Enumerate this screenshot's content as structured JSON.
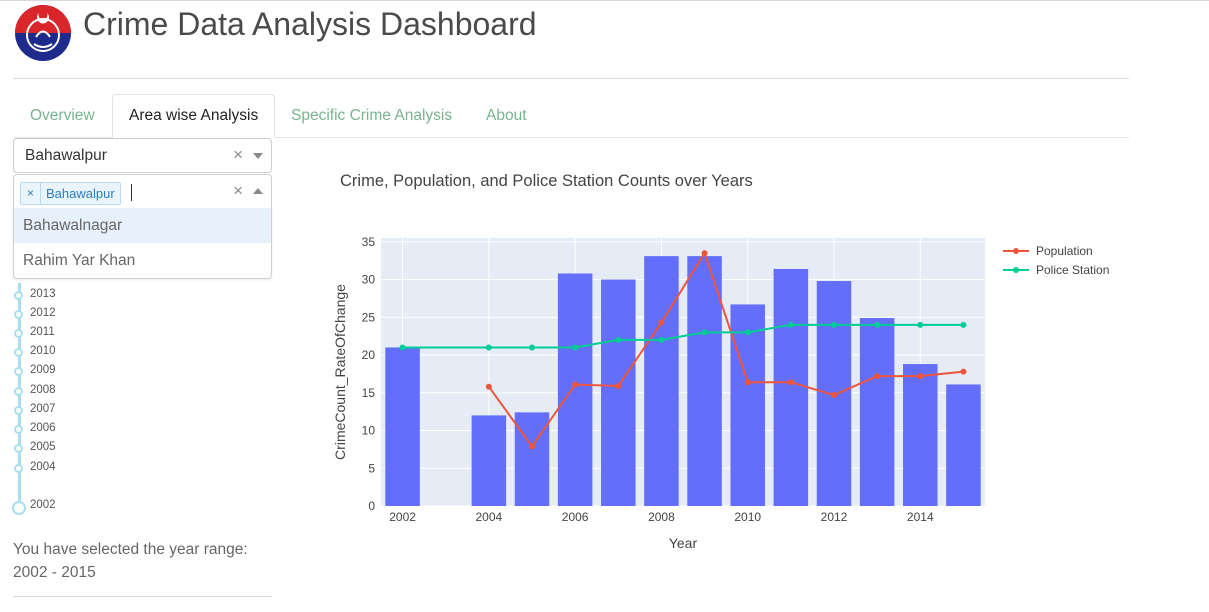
{
  "header": {
    "title": "Crime Data Analysis Dashboard",
    "logo_icon": "police-emblem"
  },
  "tabs": [
    {
      "label": "Overview",
      "active": false
    },
    {
      "label": "Area wise Analysis",
      "active": true
    },
    {
      "label": "Specific Crime Analysis",
      "active": false
    },
    {
      "label": "About",
      "active": false
    }
  ],
  "filters": {
    "district_dropdown": {
      "value": "Bahawalpur"
    },
    "multi_dropdown": {
      "selected": [
        "Bahawalpur"
      ],
      "options": [
        "Bahawalnagar",
        "Rahim Yar Khan"
      ]
    }
  },
  "slider": {
    "marks": [
      "2013",
      "2012",
      "2011",
      "2010",
      "2009",
      "2008",
      "2007",
      "2006",
      "2005",
      "2004",
      "2002"
    ],
    "selected_text": "You have selected the year range:",
    "selected_range": "2002 - 2015"
  },
  "colors": {
    "bar": "#636efa",
    "population": "#ef553b",
    "police_station": "#00cc96",
    "plot_bg": "#e5ecf6",
    "tab_inactive": "#78b48e"
  },
  "chart_data": {
    "type": "bar",
    "title": "Crime, Population, and Police Station Counts over Years",
    "xlabel": "Year",
    "ylabel": "CrimeCount_RateOfChange",
    "xlim": [
      2001.5,
      2015.5
    ],
    "ylim": [
      0,
      35.5
    ],
    "xticks": [
      2002,
      2004,
      2006,
      2008,
      2010,
      2012,
      2014
    ],
    "yticks": [
      0,
      5,
      10,
      15,
      20,
      25,
      30,
      35
    ],
    "grid": true,
    "legend_position": "top-right",
    "bars": {
      "x": [
        2002,
        2004,
        2005,
        2006,
        2007,
        2008,
        2009,
        2010,
        2011,
        2012,
        2013,
        2014,
        2015
      ],
      "values": [
        21.0,
        12.0,
        12.4,
        30.8,
        30.0,
        33.1,
        33.1,
        26.7,
        31.4,
        29.8,
        24.9,
        18.8,
        16.1
      ]
    },
    "series": [
      {
        "name": "Population",
        "type": "line",
        "x": [
          2004,
          2005,
          2006,
          2007,
          2008,
          2009,
          2010,
          2011,
          2012,
          2013,
          2014,
          2015
        ],
        "values": [
          15.8,
          7.9,
          16.1,
          15.9,
          24.3,
          33.5,
          16.4,
          16.4,
          14.7,
          17.2,
          17.2,
          17.8
        ]
      },
      {
        "name": "Police Station",
        "type": "line",
        "x": [
          2002,
          2004,
          2005,
          2006,
          2007,
          2008,
          2009,
          2010,
          2011,
          2012,
          2013,
          2014,
          2015
        ],
        "values": [
          21,
          21,
          21,
          21,
          22,
          22,
          23,
          23,
          24,
          24,
          24,
          24,
          24
        ]
      }
    ]
  }
}
